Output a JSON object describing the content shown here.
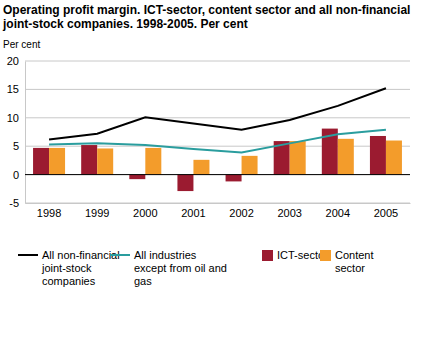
{
  "chart_data": {
    "type": "bar",
    "title": "Operating profit margin. ICT-sector, content sector and all non-financial joint-stock companies. 1998-2005. Per cent",
    "y_label": "Per cent",
    "categories": [
      "1998",
      "1999",
      "2000",
      "2001",
      "2002",
      "2003",
      "2004",
      "2005"
    ],
    "series": [
      {
        "name": "All non-financial joint-stock companies",
        "type": "line",
        "color": "#000000",
        "values": [
          6.2,
          7.2,
          10.1,
          9.0,
          7.9,
          9.6,
          12.1,
          15.2
        ]
      },
      {
        "name": "All industries except from oil and gas",
        "type": "line",
        "color": "#2a9d9e",
        "values": [
          5.3,
          5.5,
          5.2,
          4.5,
          3.9,
          5.5,
          7.1,
          7.9
        ]
      },
      {
        "name": "ICT-sector",
        "type": "bar",
        "color": "#9b1b30",
        "values": [
          4.7,
          5.2,
          -0.8,
          -2.9,
          -1.2,
          5.9,
          8.1,
          6.8
        ]
      },
      {
        "name": "Content sector",
        "type": "bar",
        "color": "#f39c2b",
        "values": [
          4.7,
          4.6,
          4.7,
          2.6,
          3.3,
          5.9,
          6.3,
          6.0
        ]
      }
    ],
    "ylim": [
      -5,
      20
    ],
    "yticks": [
      -5,
      0,
      5,
      10,
      15,
      20
    ],
    "grid": true,
    "legend": "bottom"
  }
}
